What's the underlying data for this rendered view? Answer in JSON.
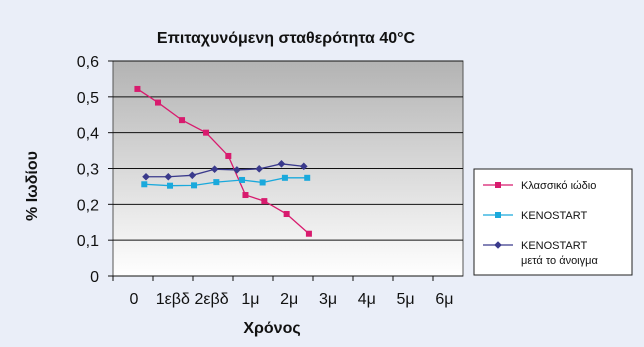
{
  "chart_data": {
    "type": "line",
    "title": "Επιταχυνόμενη σταθερότητα 40°C",
    "xlabel": "Χρόνος",
    "ylabel": "% Ιωδίου",
    "categories": [
      "0",
      "1εβδ",
      "2εβδ",
      "1μ",
      "2μ",
      "3μ",
      "4μ",
      "5μ",
      "6μ"
    ],
    "ylim": [
      0,
      0.6
    ],
    "yticks": [
      "0",
      "0,1",
      "0,2",
      "0,3",
      "0,4",
      "0,5",
      "0,6"
    ],
    "grid": true,
    "legend_position": "right",
    "series": [
      {
        "name": "Κλασσικό ιώδιο",
        "color": "#d81b6e",
        "marker": "square",
        "x": [
          0.1,
          0.7,
          1.4,
          2.1,
          2.75,
          3.25,
          3.8,
          4.45,
          5.1
        ],
        "values": [
          0.522,
          0.484,
          0.435,
          0.4,
          0.335,
          0.226,
          0.209,
          0.173,
          0.118
        ]
      },
      {
        "name": "KENOSTART",
        "color": "#1aa9dc",
        "marker": "square",
        "x": [
          0.3,
          1.05,
          1.75,
          2.4,
          3.15,
          3.75,
          4.4,
          5.05
        ],
        "values": [
          0.256,
          0.252,
          0.253,
          0.262,
          0.268,
          0.261,
          0.274,
          0.274
        ]
      },
      {
        "name": "KENOSTART",
        "name_line2": "μετά το άνοιγμα",
        "color": "#3a3a8c",
        "marker": "diamond",
        "x": [
          0.35,
          1.0,
          1.7,
          2.35,
          3.0,
          3.65,
          4.3,
          4.95
        ],
        "values": [
          0.277,
          0.277,
          0.281,
          0.298,
          0.296,
          0.299,
          0.313,
          0.306
        ]
      }
    ]
  }
}
